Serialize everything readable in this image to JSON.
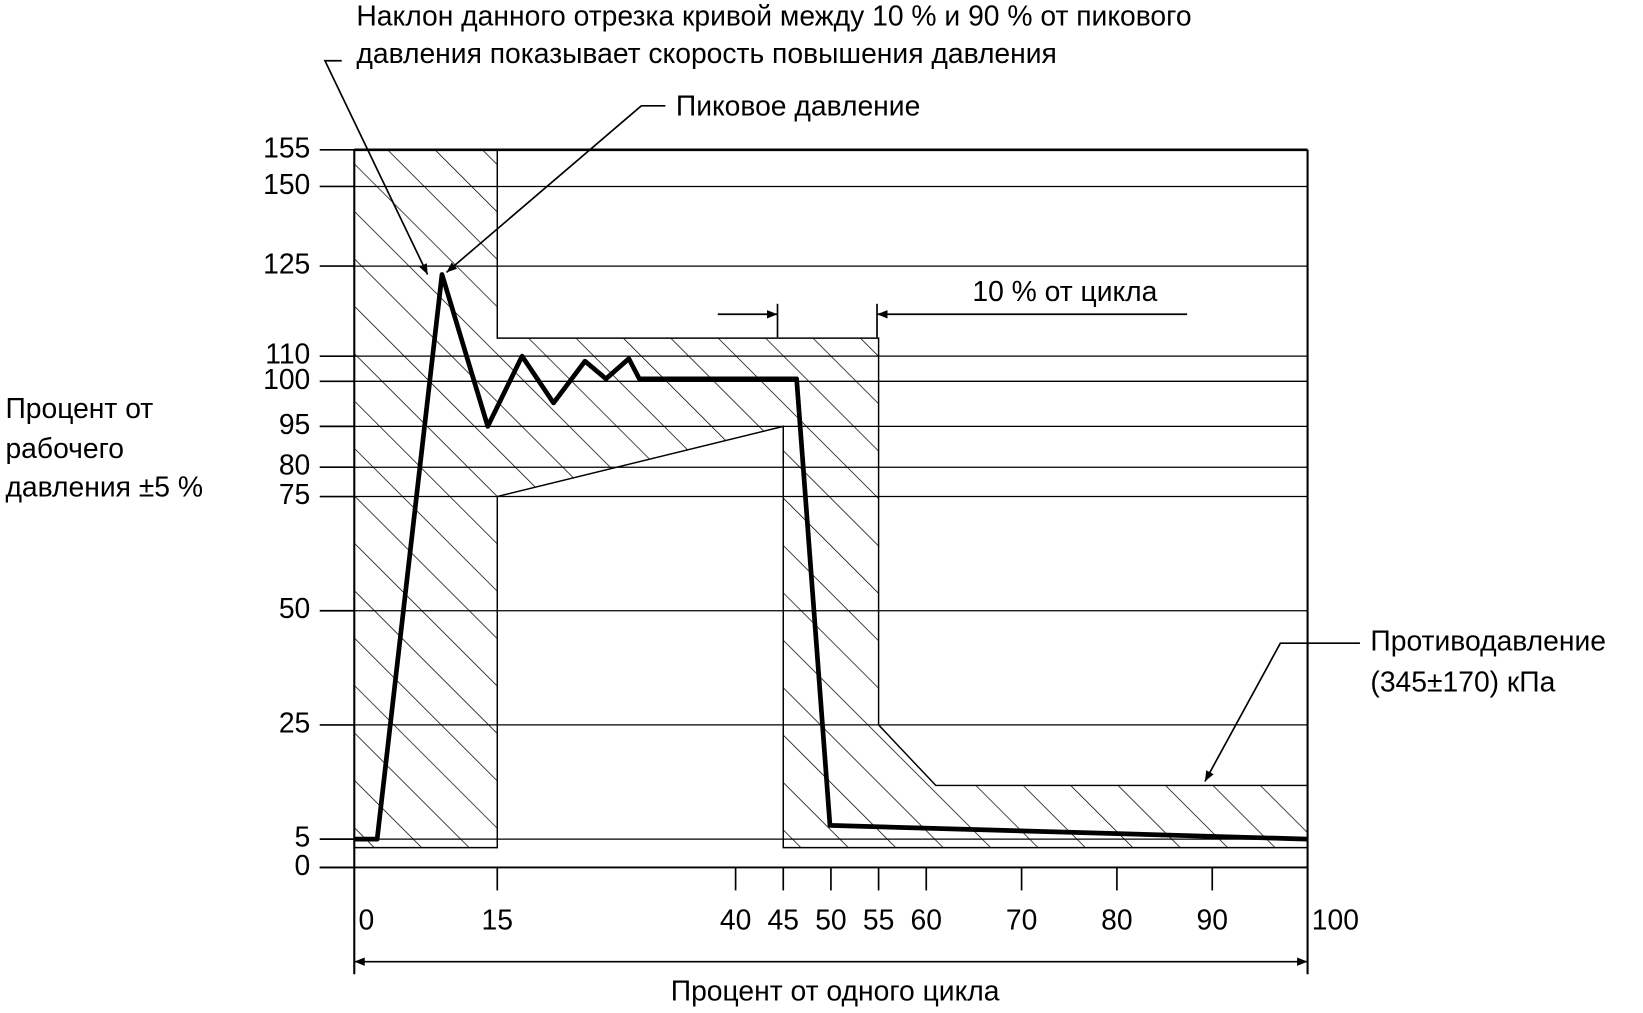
{
  "chart_data": {
    "type": "line",
    "annotations": {
      "slope_note": [
        "Наклон данного отрезка кривой между 10 % и 90 % от пикового",
        "давления показывает скорость повышения давления"
      ],
      "peak": "Пиковое давление",
      "cycle_10": "10 % от цикла",
      "backpressure": [
        "Противодавление",
        "(345±170) кПа"
      ]
    },
    "y_label": [
      "Процент от",
      "рабочего",
      "давления ±5 %"
    ],
    "x_label": "Процент от одного цикла",
    "xlim": [
      0,
      100
    ],
    "xticks": [
      0,
      15,
      40,
      45,
      50,
      55,
      60,
      70,
      80,
      90,
      100
    ],
    "ylim": [
      0,
      155
    ],
    "yticks": [
      0,
      5,
      25,
      50,
      75,
      80,
      95,
      100,
      110,
      125,
      150,
      155
    ],
    "grid": true,
    "color": "#000000",
    "trace": {
      "x": [
        0,
        2.4,
        9.2,
        14,
        17.6,
        20.9,
        24.2,
        26.4,
        28.8,
        29.9,
        46.4,
        49.9,
        100
      ],
      "y": [
        5,
        5,
        123.6,
        95,
        110,
        97.6,
        108,
        101,
        109,
        101,
        101,
        7.4,
        5
      ]
    },
    "envelope": {
      "x": [
        0,
        0,
        15,
        15,
        55,
        55,
        61,
        100,
        100,
        45,
        45,
        15,
        15
      ],
      "y": [
        3.5,
        155,
        155,
        113,
        113,
        25,
        14.4,
        14.4,
        3.5,
        3.5,
        95,
        75,
        3.5
      ]
    }
  }
}
